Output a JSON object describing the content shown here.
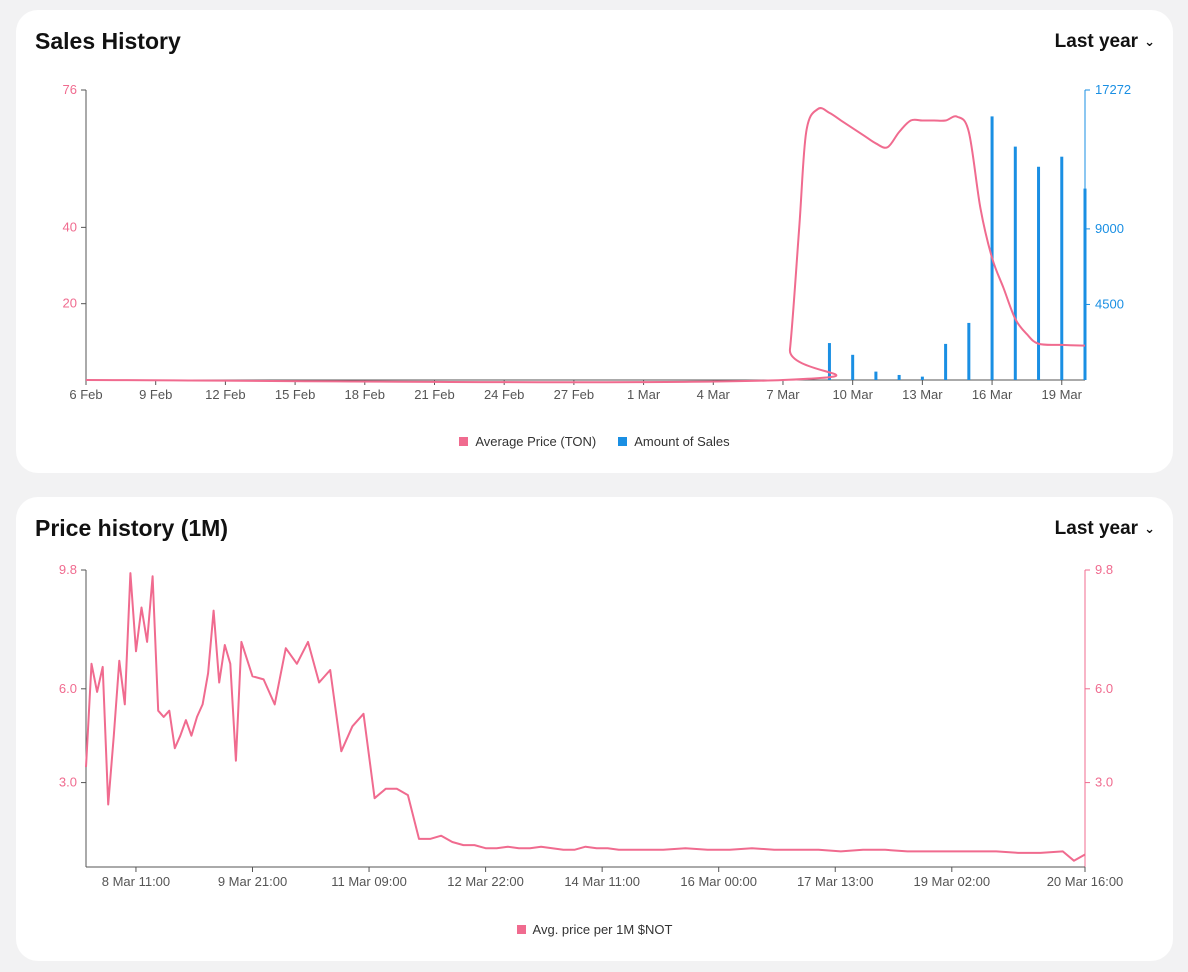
{
  "colors": {
    "price": "#f06b8f",
    "sales": "#1a8fe3",
    "axis": "#6b6b6b",
    "background": "#f2f2f3"
  },
  "chart_data": [
    {
      "type": "bar+line",
      "title": "Sales History",
      "period_label": "Last year",
      "x_labels": [
        "6 Feb",
        "9 Feb",
        "12 Feb",
        "15 Feb",
        "18 Feb",
        "21 Feb",
        "24 Feb",
        "27 Feb",
        "1 Mar",
        "4 Mar",
        "7 Mar",
        "10 Mar",
        "13 Mar",
        "16 Mar",
        "19 Mar"
      ],
      "left_axis": {
        "ticks": [
          20,
          40,
          76
        ],
        "tick_labels": [
          "20",
          "40",
          "76"
        ],
        "range": [
          0,
          76
        ]
      },
      "right_axis": {
        "ticks": [
          4500,
          9000,
          17272
        ],
        "tick_labels": [
          "4500",
          "9000",
          "17272"
        ],
        "range": [
          0,
          17272
        ]
      },
      "legend": [
        "Average Price (TON)",
        "Amount of Sales"
      ],
      "series": [
        {
          "name": "Average Price (TON)",
          "kind": "line",
          "x": [
            0,
            30,
            30.3,
            30.7,
            31,
            31.5,
            32,
            32.5,
            33,
            33.5,
            34,
            34.5,
            35,
            35.5,
            36,
            36.5,
            37,
            37.5,
            38,
            38.5,
            39,
            39.5,
            40,
            40.5,
            41,
            42,
            43
          ],
          "values": [
            0,
            0,
            8,
            40,
            65,
            71,
            70,
            68,
            66,
            64,
            62,
            61,
            65,
            68,
            68,
            68,
            68,
            69,
            65,
            45,
            32,
            24,
            16,
            12,
            9.5,
            9.2,
            9.0
          ]
        },
        {
          "name": "Amount of Sales",
          "kind": "bar",
          "x": [
            31,
            32,
            33,
            34,
            35,
            36,
            37,
            38,
            39,
            40,
            41,
            42,
            43
          ],
          "values": [
            80,
            2200,
            1500,
            500,
            300,
            200,
            2150,
            3400,
            15700,
            13900,
            12700,
            13300,
            11400
          ]
        }
      ]
    },
    {
      "type": "line",
      "title": "Price history (1M)",
      "period_label": "Last year",
      "x_labels": [
        "8 Mar 11:00",
        "9 Mar 21:00",
        "11 Mar 09:00",
        "12 Mar 22:00",
        "14 Mar 11:00",
        "16 Mar 00:00",
        "17 Mar 13:00",
        "19 Mar 02:00",
        "20 Mar 16:00"
      ],
      "left_axis": {
        "ticks": [
          3.0,
          6.0,
          9.8
        ],
        "tick_labels": [
          "3.0",
          "6.0",
          "9.8"
        ],
        "range": [
          0.3,
          9.8
        ]
      },
      "right_axis": {
        "ticks": [
          3.0,
          6.0,
          9.8
        ],
        "tick_labels": [
          "3.0",
          "6.0",
          "9.8"
        ],
        "range": [
          0.3,
          9.8
        ]
      },
      "legend": [
        "Avg. price per 1M $NOT"
      ],
      "series": [
        {
          "name": "Avg. price per 1M $NOT",
          "x": [
            0,
            0.05,
            0.1,
            0.15,
            0.2,
            0.25,
            0.3,
            0.35,
            0.4,
            0.45,
            0.5,
            0.55,
            0.6,
            0.65,
            0.7,
            0.75,
            0.8,
            0.85,
            0.9,
            0.95,
            1.0,
            1.05,
            1.1,
            1.15,
            1.2,
            1.25,
            1.3,
            1.35,
            1.4,
            1.5,
            1.6,
            1.7,
            1.8,
            1.9,
            2.0,
            2.1,
            2.2,
            2.3,
            2.4,
            2.5,
            2.6,
            2.7,
            2.8,
            2.9,
            3.0,
            3.1,
            3.2,
            3.3,
            3.4,
            3.5,
            3.6,
            3.7,
            3.8,
            3.9,
            4.0,
            4.1,
            4.2,
            4.3,
            4.4,
            4.5,
            4.6,
            4.7,
            4.8,
            4.9,
            5.0,
            5.2,
            5.4,
            5.6,
            5.8,
            6.0,
            6.2,
            6.4,
            6.6,
            6.8,
            7.0,
            7.2,
            7.4,
            7.6,
            7.8,
            8.0,
            8.2,
            8.4,
            8.6,
            8.8,
            8.9,
            9.0
          ],
          "values": [
            3.5,
            6.8,
            5.9,
            6.7,
            2.3,
            4.5,
            6.9,
            5.5,
            9.7,
            7.2,
            8.6,
            7.5,
            9.6,
            5.3,
            5.1,
            5.3,
            4.1,
            4.5,
            5.0,
            4.5,
            5.1,
            5.5,
            6.5,
            8.5,
            6.2,
            7.4,
            6.8,
            3.7,
            7.5,
            6.4,
            6.3,
            5.5,
            7.3,
            6.8,
            7.5,
            6.2,
            6.6,
            4.0,
            4.8,
            5.2,
            2.5,
            2.8,
            2.8,
            2.6,
            1.2,
            1.2,
            1.3,
            1.1,
            1.0,
            1.0,
            0.9,
            0.9,
            0.95,
            0.9,
            0.9,
            0.95,
            0.9,
            0.85,
            0.85,
            0.95,
            0.9,
            0.9,
            0.85,
            0.85,
            0.85,
            0.85,
            0.9,
            0.85,
            0.85,
            0.9,
            0.85,
            0.85,
            0.85,
            0.8,
            0.85,
            0.85,
            0.8,
            0.8,
            0.8,
            0.8,
            0.8,
            0.75,
            0.75,
            0.8,
            0.5,
            0.7
          ]
        }
      ]
    }
  ]
}
